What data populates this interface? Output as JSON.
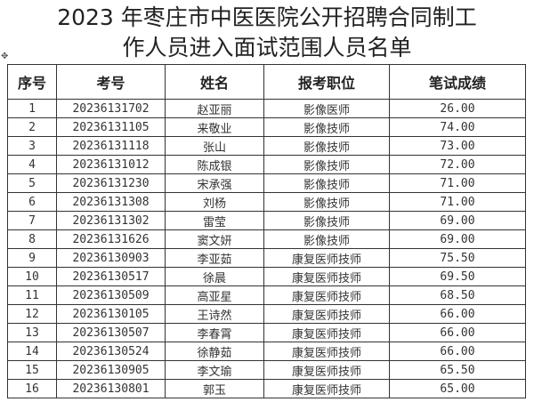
{
  "title_line1": "2023 年枣庄市中医医院公开招聘合同制工",
  "title_line2": "作人员进入面试范围人员名单",
  "move_icon": "move-handle-icon",
  "columns": [
    "序号",
    "考号",
    "姓名",
    "报考职位",
    "笔试成绩"
  ],
  "rows": [
    [
      "1",
      "20236131702",
      "赵亚丽",
      "影像医师",
      "26.00"
    ],
    [
      "2",
      "20236131105",
      "来敬业",
      "影像技师",
      "74.00"
    ],
    [
      "3",
      "20236131118",
      "张山",
      "影像技师",
      "73.00"
    ],
    [
      "4",
      "20236131012",
      "陈成银",
      "影像技师",
      "72.00"
    ],
    [
      "5",
      "20236131230",
      "宋承强",
      "影像技师",
      "71.00"
    ],
    [
      "6",
      "20236131308",
      "刘杨",
      "影像技师",
      "71.00"
    ],
    [
      "7",
      "20236131302",
      "雷莹",
      "影像技师",
      "69.00"
    ],
    [
      "8",
      "20236131626",
      "窦文妍",
      "影像技师",
      "69.00"
    ],
    [
      "9",
      "20236130903",
      "李亚茹",
      "康复医师技师",
      "75.50"
    ],
    [
      "10",
      "20236130517",
      "徐晨",
      "康复医师技师",
      "69.50"
    ],
    [
      "11",
      "20236130509",
      "高亚星",
      "康复医师技师",
      "68.50"
    ],
    [
      "12",
      "20236130105",
      "王诗然",
      "康复医师技师",
      "66.00"
    ],
    [
      "13",
      "20236130507",
      "李春霄",
      "康复医师技师",
      "66.00"
    ],
    [
      "14",
      "20236130524",
      "徐静茹",
      "康复医师技师",
      "66.00"
    ],
    [
      "15",
      "20236130905",
      "李文瑜",
      "康复医师技师",
      "65.50"
    ],
    [
      "16",
      "20236130801",
      "郭玉",
      "康复医师技师",
      "65.00"
    ]
  ]
}
